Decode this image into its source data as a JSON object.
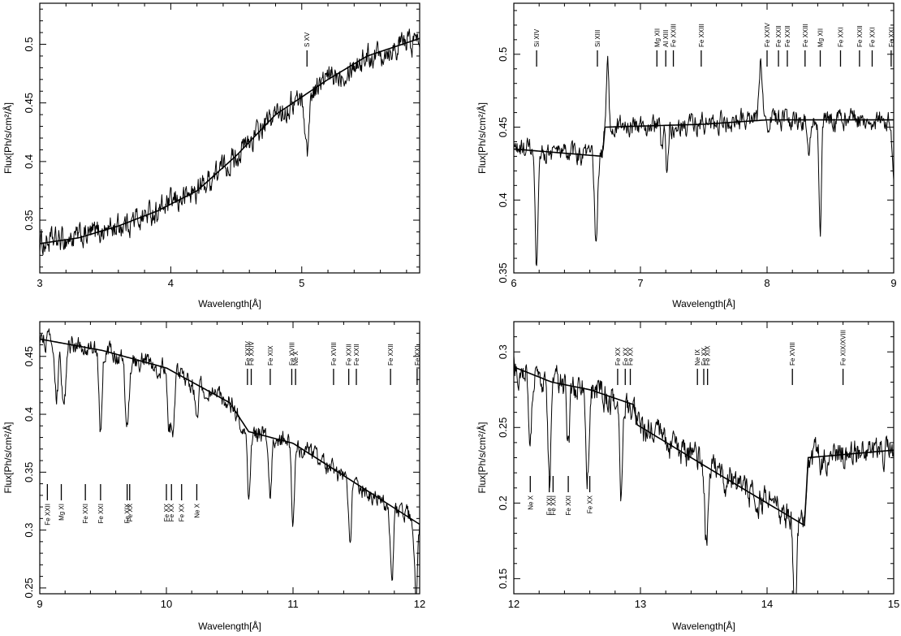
{
  "chart_data": [
    {
      "type": "line",
      "xlabel": "Wavelength[Å]",
      "ylabel": "Flux[Ph/s/cm²/Å]",
      "xlim": [
        3,
        5.9
      ],
      "ylim": [
        0.305,
        0.535
      ],
      "xticks": [
        3,
        4,
        5
      ],
      "yticks": [
        0.35,
        0.4,
        0.45,
        0.5
      ],
      "grid": false,
      "model": {
        "x": [
          3.0,
          3.3,
          3.6,
          3.9,
          4.2,
          4.5,
          4.8,
          5.0,
          5.2,
          5.5,
          5.9
        ],
        "y": [
          0.33,
          0.335,
          0.345,
          0.358,
          0.375,
          0.405,
          0.44,
          0.455,
          0.47,
          0.49,
          0.505
        ]
      },
      "absorption": [
        {
          "x": 5.04,
          "depth": 0.05,
          "width": 0.015
        }
      ],
      "emission": [],
      "noise": 0.012,
      "lines_top": [
        {
          "x": 5.04,
          "label": "S XV"
        }
      ],
      "lines_bottom": []
    },
    {
      "type": "line",
      "xlabel": "Wavelength[Å]",
      "ylabel": "Flux[Ph/s/cm²/Å]",
      "xlim": [
        6,
        9
      ],
      "ylim": [
        0.35,
        0.535
      ],
      "xticks": [
        6,
        7,
        8,
        9
      ],
      "yticks": [
        0.35,
        0.4,
        0.45,
        0.5
      ],
      "grid": false,
      "model": {
        "x": [
          6.0,
          6.7,
          6.72,
          7.5,
          8.0,
          8.5,
          9.0
        ],
        "y": [
          0.435,
          0.43,
          0.45,
          0.452,
          0.455,
          0.455,
          0.455
        ]
      },
      "absorption": [
        {
          "x": 6.18,
          "depth": 0.085,
          "width": 0.012
        },
        {
          "x": 6.65,
          "depth": 0.06,
          "width": 0.012
        },
        {
          "x": 7.17,
          "depth": 0.02,
          "width": 0.01
        },
        {
          "x": 7.21,
          "depth": 0.035,
          "width": 0.01
        },
        {
          "x": 8.33,
          "depth": 0.03,
          "width": 0.01
        },
        {
          "x": 8.42,
          "depth": 0.08,
          "width": 0.01
        },
        {
          "x": 9.0,
          "depth": 0.04,
          "width": 0.01
        }
      ],
      "emission": [
        {
          "x": 6.74,
          "height": 0.045,
          "width": 0.01
        },
        {
          "x": 7.95,
          "height": 0.045,
          "width": 0.012
        }
      ],
      "noise": 0.008,
      "lines_top": [
        {
          "x": 6.18,
          "label": "Si XIV"
        },
        {
          "x": 6.66,
          "label": "Si XIII"
        },
        {
          "x": 7.13,
          "label": "Mg XII"
        },
        {
          "x": 7.2,
          "label": "Al XIII"
        },
        {
          "x": 7.26,
          "label": "Fe XXIII"
        },
        {
          "x": 7.48,
          "label": "Fe XXIII"
        },
        {
          "x": 8.0,
          "label": "Fe XXIV"
        },
        {
          "x": 8.09,
          "label": "Fe XXII"
        },
        {
          "x": 8.16,
          "label": "Fe XXII"
        },
        {
          "x": 8.3,
          "label": "Fe XXIII"
        },
        {
          "x": 8.42,
          "label": "Mg XII"
        },
        {
          "x": 8.58,
          "label": "Fe XXI"
        },
        {
          "x": 8.73,
          "label": "Fe XXII"
        },
        {
          "x": 8.83,
          "label": "Fe XXI"
        },
        {
          "x": 8.98,
          "label": "Fe XXI"
        }
      ],
      "lines_bottom": []
    },
    {
      "type": "line",
      "xlabel": "Wavelength[Å]",
      "ylabel": "Flux[Ph/s/cm²/Å]",
      "xlim": [
        9,
        12
      ],
      "ylim": [
        0.245,
        0.48
      ],
      "xticks": [
        9,
        10,
        11,
        12
      ],
      "yticks": [
        0.25,
        0.3,
        0.35,
        0.4,
        0.45
      ],
      "grid": false,
      "model": {
        "x": [
          9.0,
          9.5,
          10.0,
          10.5,
          10.65,
          11.0,
          11.5,
          12.0
        ],
        "y": [
          0.465,
          0.455,
          0.44,
          0.41,
          0.385,
          0.375,
          0.34,
          0.305
        ]
      },
      "absorption": [
        {
          "x": 9.13,
          "depth": 0.05,
          "width": 0.015
        },
        {
          "x": 9.19,
          "depth": 0.06,
          "width": 0.015
        },
        {
          "x": 9.48,
          "depth": 0.07,
          "width": 0.012
        },
        {
          "x": 9.69,
          "depth": 0.06,
          "width": 0.015
        },
        {
          "x": 10.02,
          "depth": 0.05,
          "width": 0.012
        },
        {
          "x": 10.05,
          "depth": 0.06,
          "width": 0.012
        },
        {
          "x": 10.24,
          "depth": 0.03,
          "width": 0.012
        },
        {
          "x": 10.65,
          "depth": 0.06,
          "width": 0.012
        },
        {
          "x": 10.82,
          "depth": 0.05,
          "width": 0.012
        },
        {
          "x": 11.0,
          "depth": 0.07,
          "width": 0.012
        },
        {
          "x": 11.45,
          "depth": 0.06,
          "width": 0.012
        },
        {
          "x": 11.78,
          "depth": 0.07,
          "width": 0.012
        },
        {
          "x": 11.97,
          "depth": 0.06,
          "width": 0.012
        }
      ],
      "emission": [],
      "noise": 0.009,
      "lines_top": [
        {
          "x": 10.64,
          "label": "Fe XXIV"
        },
        {
          "x": 10.67,
          "label": "Fe XXIV"
        },
        {
          "x": 10.82,
          "label": "Fe XIX"
        },
        {
          "x": 10.99,
          "label": "Fe XVIII"
        },
        {
          "x": 11.02,
          "label": "Ne X"
        },
        {
          "x": 11.32,
          "label": "Fe XVIII"
        },
        {
          "x": 11.44,
          "label": "Fe XXII"
        },
        {
          "x": 11.5,
          "label": "Fe XXII"
        },
        {
          "x": 11.77,
          "label": "Fe XXII"
        },
        {
          "x": 11.98,
          "label": "Fe XXI"
        }
      ],
      "lines_bottom": [
        {
          "x": 9.06,
          "label": "Fe XXII"
        },
        {
          "x": 9.17,
          "label": "Mg XI"
        },
        {
          "x": 9.36,
          "label": "Fe XXI"
        },
        {
          "x": 9.48,
          "label": "Fe XXI"
        },
        {
          "x": 9.69,
          "label": "Fe XIX"
        },
        {
          "x": 9.71,
          "label": "Fe XX"
        },
        {
          "x": 10.0,
          "label": "Fe XX"
        },
        {
          "x": 10.04,
          "label": "Fe XX"
        },
        {
          "x": 10.12,
          "label": "Fe XX"
        },
        {
          "x": 10.24,
          "label": "Ne X"
        }
      ]
    },
    {
      "type": "line",
      "xlabel": "Wavelength[Å]",
      "ylabel": "Flux[Ph/s/cm²/Å]",
      "xlim": [
        12,
        15
      ],
      "ylim": [
        0.14,
        0.32
      ],
      "xticks": [
        12,
        13,
        14,
        15
      ],
      "yticks": [
        0.15,
        0.2,
        0.25,
        0.3
      ],
      "grid": false,
      "model": {
        "x": [
          12.0,
          12.3,
          12.6,
          12.95,
          12.97,
          13.5,
          14.0,
          14.3,
          14.32,
          15.0
        ],
        "y": [
          0.29,
          0.28,
          0.275,
          0.265,
          0.252,
          0.225,
          0.2,
          0.185,
          0.23,
          0.235
        ]
      },
      "absorption": [
        {
          "x": 12.13,
          "depth": 0.04,
          "width": 0.012
        },
        {
          "x": 12.28,
          "depth": 0.07,
          "width": 0.012
        },
        {
          "x": 12.43,
          "depth": 0.04,
          "width": 0.012
        },
        {
          "x": 12.58,
          "depth": 0.06,
          "width": 0.012
        },
        {
          "x": 12.85,
          "depth": 0.06,
          "width": 0.012
        },
        {
          "x": 13.52,
          "depth": 0.05,
          "width": 0.012
        },
        {
          "x": 14.22,
          "depth": 0.07,
          "width": 0.012
        }
      ],
      "emission": [],
      "noise": 0.011,
      "lines_top": [
        {
          "x": 12.82,
          "label": "Fe XX"
        },
        {
          "x": 12.88,
          "label": "Fe XX"
        },
        {
          "x": 12.92,
          "label": "Fe XX"
        },
        {
          "x": 13.45,
          "label": "Ne IX"
        },
        {
          "x": 13.5,
          "label": "Fe XX"
        },
        {
          "x": 13.53,
          "label": "Fe XIX"
        },
        {
          "x": 14.2,
          "label": "Fe XVIII"
        },
        {
          "x": 14.6,
          "label": "Fe XIX/XVIII"
        }
      ],
      "lines_bottom": [
        {
          "x": 12.13,
          "label": "Ne X"
        },
        {
          "x": 12.28,
          "label": "Fe XXI"
        },
        {
          "x": 12.31,
          "label": "Fe XXI"
        },
        {
          "x": 12.43,
          "label": "Fe XXI"
        },
        {
          "x": 12.6,
          "label": "Fe XX"
        }
      ]
    }
  ]
}
